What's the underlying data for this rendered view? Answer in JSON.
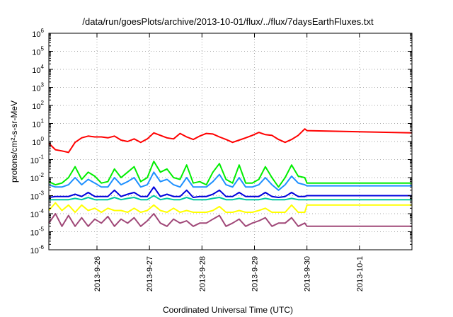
{
  "chart_data": {
    "type": "line",
    "title": "/data/run/goesPlots/archive/2013-10-01/flux/../flux/7daysEarthFluxes.txt",
    "xlabel": "Coordinated Universal Time (UTC)",
    "ylabel": "protons/cm²-s-sr-MeV",
    "yscale": "log",
    "ylim": [
      1e-06,
      1000000.0
    ],
    "y_ticks": [
      {
        "base": "10",
        "exp": "-6"
      },
      {
        "base": "10",
        "exp": "-5"
      },
      {
        "base": "10",
        "exp": "-4"
      },
      {
        "base": "10",
        "exp": "-3"
      },
      {
        "base": "10",
        "exp": "-2"
      },
      {
        "base": "10",
        "exp": "-1"
      },
      {
        "base": "10",
        "exp": "0"
      },
      {
        "base": "10",
        "exp": "1"
      },
      {
        "base": "10",
        "exp": "2"
      },
      {
        "base": "10",
        "exp": "3"
      },
      {
        "base": "10",
        "exp": "4"
      },
      {
        "base": "10",
        "exp": "5"
      },
      {
        "base": "10",
        "exp": "6"
      }
    ],
    "xlim": [
      "2013-09-25T02:00",
      "2013-10-02T00:00"
    ],
    "x_ticks": [
      "2013-9-26",
      "2013-9-27",
      "2013-9-28",
      "2013-9-29",
      "2013-9-30",
      "2013-10-1"
    ],
    "grid": true,
    "series": [
      {
        "color": "#ff0000",
        "x": [
          "2013-09-25T02:00",
          "2013-09-25T05:00",
          "2013-09-25T08:00",
          "2013-09-25T11:00",
          "2013-09-25T14:00",
          "2013-09-25T17:00",
          "2013-09-25T20:00",
          "2013-09-25T23:00",
          "2013-09-26T02:00",
          "2013-09-26T05:00",
          "2013-09-26T08:00",
          "2013-09-26T11:00",
          "2013-09-26T14:00",
          "2013-09-26T17:00",
          "2013-09-26T20:00",
          "2013-09-26T23:00",
          "2013-09-27T02:00",
          "2013-09-27T05:00",
          "2013-09-27T08:00",
          "2013-09-27T11:00",
          "2013-09-27T14:00",
          "2013-09-27T17:00",
          "2013-09-27T20:00",
          "2013-09-27T23:00",
          "2013-09-28T02:00",
          "2013-09-28T05:00",
          "2013-09-28T08:00",
          "2013-09-28T11:00",
          "2013-09-28T14:00",
          "2013-09-28T17:00",
          "2013-09-28T20:00",
          "2013-09-28T23:00",
          "2013-09-29T02:00",
          "2013-09-29T05:00",
          "2013-09-29T08:00",
          "2013-09-29T11:00",
          "2013-09-29T14:00",
          "2013-09-29T17:00",
          "2013-09-29T20:00",
          "2013-09-29T23:00",
          "2013-09-30T00:00",
          "2013-10-02T00:00"
        ],
        "y": [
          0.8,
          0.35,
          0.3,
          0.25,
          0.9,
          1.6,
          2.0,
          1.8,
          1.8,
          1.6,
          2.0,
          1.2,
          1.0,
          1.4,
          0.9,
          1.4,
          3.0,
          2.2,
          1.6,
          1.4,
          2.8,
          1.8,
          1.3,
          2.0,
          2.8,
          2.6,
          1.8,
          1.3,
          0.9,
          1.2,
          1.6,
          2.2,
          3.2,
          2.4,
          2.2,
          1.3,
          0.9,
          1.3,
          2.2,
          5.0,
          4.0,
          3.0
        ]
      },
      {
        "color": "#00ee00",
        "x": [
          "2013-09-25T02:00",
          "2013-09-25T05:00",
          "2013-09-25T08:00",
          "2013-09-25T11:00",
          "2013-09-25T14:00",
          "2013-09-25T17:00",
          "2013-09-25T20:00",
          "2013-09-25T23:00",
          "2013-09-26T02:00",
          "2013-09-26T05:00",
          "2013-09-26T08:00",
          "2013-09-26T11:00",
          "2013-09-26T14:00",
          "2013-09-26T17:00",
          "2013-09-26T20:00",
          "2013-09-26T23:00",
          "2013-09-27T02:00",
          "2013-09-27T05:00",
          "2013-09-27T08:00",
          "2013-09-27T11:00",
          "2013-09-27T14:00",
          "2013-09-27T17:00",
          "2013-09-27T20:00",
          "2013-09-27T23:00",
          "2013-09-28T02:00",
          "2013-09-28T05:00",
          "2013-09-28T08:00",
          "2013-09-28T11:00",
          "2013-09-28T14:00",
          "2013-09-28T17:00",
          "2013-09-28T20:00",
          "2013-09-28T23:00",
          "2013-09-29T02:00",
          "2013-09-29T05:00",
          "2013-09-29T08:00",
          "2013-09-29T11:00",
          "2013-09-29T14:00",
          "2013-09-29T17:00",
          "2013-09-29T20:00",
          "2013-09-29T23:00",
          "2013-09-30T00:00",
          "2013-10-02T00:00"
        ],
        "y": [
          0.006,
          0.004,
          0.005,
          0.01,
          0.04,
          0.008,
          0.02,
          0.012,
          0.005,
          0.006,
          0.03,
          0.01,
          0.02,
          0.04,
          0.006,
          0.01,
          0.08,
          0.02,
          0.03,
          0.01,
          0.008,
          0.05,
          0.005,
          0.006,
          0.004,
          0.02,
          0.06,
          0.008,
          0.005,
          0.05,
          0.005,
          0.005,
          0.008,
          0.04,
          0.01,
          0.003,
          0.01,
          0.05,
          0.012,
          0.01,
          0.005,
          0.005
        ]
      },
      {
        "color": "#1e90ff",
        "x": [
          "2013-09-25T02:00",
          "2013-09-25T05:00",
          "2013-09-25T08:00",
          "2013-09-25T11:00",
          "2013-09-25T14:00",
          "2013-09-25T17:00",
          "2013-09-25T20:00",
          "2013-09-25T23:00",
          "2013-09-26T02:00",
          "2013-09-26T05:00",
          "2013-09-26T08:00",
          "2013-09-26T11:00",
          "2013-09-26T14:00",
          "2013-09-26T17:00",
          "2013-09-26T20:00",
          "2013-09-26T23:00",
          "2013-09-27T02:00",
          "2013-09-27T05:00",
          "2013-09-27T08:00",
          "2013-09-27T11:00",
          "2013-09-27T14:00",
          "2013-09-27T17:00",
          "2013-09-27T20:00",
          "2013-09-27T23:00",
          "2013-09-28T02:00",
          "2013-09-28T05:00",
          "2013-09-28T08:00",
          "2013-09-28T11:00",
          "2013-09-28T14:00",
          "2013-09-28T17:00",
          "2013-09-28T20:00",
          "2013-09-28T23:00",
          "2013-09-29T02:00",
          "2013-09-29T05:00",
          "2013-09-29T08:00",
          "2013-09-29T11:00",
          "2013-09-29T14:00",
          "2013-09-29T17:00",
          "2013-09-29T20:00",
          "2013-09-29T23:00",
          "2013-09-30T00:00",
          "2013-10-02T00:00"
        ],
        "y": [
          0.004,
          0.003,
          0.003,
          0.004,
          0.01,
          0.004,
          0.008,
          0.005,
          0.003,
          0.003,
          0.01,
          0.004,
          0.006,
          0.01,
          0.003,
          0.004,
          0.02,
          0.006,
          0.008,
          0.004,
          0.003,
          0.01,
          0.003,
          0.003,
          0.003,
          0.006,
          0.015,
          0.004,
          0.003,
          0.01,
          0.003,
          0.003,
          0.004,
          0.01,
          0.004,
          0.002,
          0.004,
          0.012,
          0.005,
          0.004,
          0.0035,
          0.0035
        ]
      },
      {
        "color": "#0000dd",
        "x": [
          "2013-09-25T02:00",
          "2013-09-25T05:00",
          "2013-09-25T08:00",
          "2013-09-25T11:00",
          "2013-09-25T14:00",
          "2013-09-25T17:00",
          "2013-09-25T20:00",
          "2013-09-25T23:00",
          "2013-09-26T02:00",
          "2013-09-26T05:00",
          "2013-09-26T08:00",
          "2013-09-26T11:00",
          "2013-09-26T14:00",
          "2013-09-26T17:00",
          "2013-09-26T20:00",
          "2013-09-26T23:00",
          "2013-09-27T02:00",
          "2013-09-27T05:00",
          "2013-09-27T08:00",
          "2013-09-27T11:00",
          "2013-09-27T14:00",
          "2013-09-27T17:00",
          "2013-09-27T20:00",
          "2013-09-27T23:00",
          "2013-09-28T02:00",
          "2013-09-28T05:00",
          "2013-09-28T08:00",
          "2013-09-28T11:00",
          "2013-09-28T14:00",
          "2013-09-28T17:00",
          "2013-09-28T20:00",
          "2013-09-28T23:00",
          "2013-09-29T02:00",
          "2013-09-29T05:00",
          "2013-09-29T08:00",
          "2013-09-29T11:00",
          "2013-09-29T14:00",
          "2013-09-29T17:00",
          "2013-09-29T20:00",
          "2013-09-29T23:00",
          "2013-09-30T00:00",
          "2013-10-02T00:00"
        ],
        "y": [
          0.0008,
          0.0009,
          0.0009,
          0.0009,
          0.0012,
          0.0009,
          0.0015,
          0.0009,
          0.0009,
          0.0009,
          0.002,
          0.0009,
          0.0012,
          0.0015,
          0.0009,
          0.0009,
          0.003,
          0.0009,
          0.0012,
          0.0009,
          0.0009,
          0.002,
          0.0008,
          0.0009,
          0.0009,
          0.0012,
          0.002,
          0.0009,
          0.0009,
          0.0015,
          0.0009,
          0.0009,
          0.0009,
          0.0015,
          0.0009,
          0.0008,
          0.0009,
          0.0015,
          0.0009,
          0.0009,
          0.001,
          0.001
        ]
      },
      {
        "color": "#00c8a0",
        "x": [
          "2013-09-25T02:00",
          "2013-09-25T05:00",
          "2013-09-25T08:00",
          "2013-09-25T11:00",
          "2013-09-25T14:00",
          "2013-09-25T17:00",
          "2013-09-25T20:00",
          "2013-09-25T23:00",
          "2013-09-26T02:00",
          "2013-09-26T05:00",
          "2013-09-26T08:00",
          "2013-09-26T11:00",
          "2013-09-26T14:00",
          "2013-09-26T17:00",
          "2013-09-26T20:00",
          "2013-09-26T23:00",
          "2013-09-27T02:00",
          "2013-09-27T05:00",
          "2013-09-27T08:00",
          "2013-09-27T11:00",
          "2013-09-27T14:00",
          "2013-09-27T17:00",
          "2013-09-27T20:00",
          "2013-09-27T23:00",
          "2013-09-28T02:00",
          "2013-09-28T05:00",
          "2013-09-28T08:00",
          "2013-09-28T11:00",
          "2013-09-28T14:00",
          "2013-09-28T17:00",
          "2013-09-28T20:00",
          "2013-09-28T23:00",
          "2013-09-29T02:00",
          "2013-09-29T05:00",
          "2013-09-29T08:00",
          "2013-09-29T11:00",
          "2013-09-29T14:00",
          "2013-09-29T17:00",
          "2013-09-29T20:00",
          "2013-09-29T23:00",
          "2013-09-30T00:00",
          "2013-10-02T00:00"
        ],
        "y": [
          0.0006,
          0.0006,
          0.0006,
          0.0006,
          0.0007,
          0.0006,
          0.0008,
          0.0006,
          0.0006,
          0.0006,
          0.0008,
          0.0006,
          0.0007,
          0.0008,
          0.0006,
          0.0006,
          0.001,
          0.0006,
          0.0007,
          0.0006,
          0.0006,
          0.0008,
          0.0006,
          0.0006,
          0.0006,
          0.0007,
          0.0008,
          0.0006,
          0.0006,
          0.0007,
          0.0006,
          0.0006,
          0.0006,
          0.0007,
          0.0006,
          0.0006,
          0.0006,
          0.0007,
          0.0006,
          0.0006,
          0.0006,
          0.0006
        ]
      },
      {
        "color": "#ffff00",
        "x": [
          "2013-09-25T02:00",
          "2013-09-25T05:00",
          "2013-09-25T08:00",
          "2013-09-25T11:00",
          "2013-09-25T14:00",
          "2013-09-25T17:00",
          "2013-09-25T20:00",
          "2013-09-25T23:00",
          "2013-09-26T02:00",
          "2013-09-26T05:00",
          "2013-09-26T08:00",
          "2013-09-26T11:00",
          "2013-09-26T14:00",
          "2013-09-26T17:00",
          "2013-09-26T20:00",
          "2013-09-26T23:00",
          "2013-09-27T02:00",
          "2013-09-27T05:00",
          "2013-09-27T08:00",
          "2013-09-27T11:00",
          "2013-09-27T14:00",
          "2013-09-27T17:00",
          "2013-09-27T20:00",
          "2013-09-27T23:00",
          "2013-09-28T02:00",
          "2013-09-28T05:00",
          "2013-09-28T08:00",
          "2013-09-28T11:00",
          "2013-09-28T14:00",
          "2013-09-28T17:00",
          "2013-09-28T20:00",
          "2013-09-28T23:00",
          "2013-09-29T02:00",
          "2013-09-29T05:00",
          "2013-09-29T08:00",
          "2013-09-29T11:00",
          "2013-09-29T14:00",
          "2013-09-29T17:00",
          "2013-09-29T20:00",
          "2013-09-29T23:00",
          "2013-09-30T00:00",
          "2013-10-02T00:00"
        ],
        "y": [
          0.00015,
          0.0004,
          0.00015,
          0.0003,
          0.00012,
          0.0003,
          0.00015,
          0.0002,
          0.00012,
          0.0002,
          0.00015,
          0.00015,
          0.00012,
          0.0002,
          0.00012,
          0.00015,
          0.0003,
          0.00015,
          0.00012,
          0.0002,
          0.00012,
          0.00015,
          0.00012,
          0.00012,
          0.00012,
          0.00015,
          0.00025,
          0.00012,
          0.00012,
          0.00015,
          0.00012,
          0.00012,
          0.00015,
          0.0002,
          0.00012,
          0.00012,
          0.00012,
          0.0003,
          0.00012,
          0.00012,
          0.0003,
          0.0003
        ]
      },
      {
        "color": "#a04878",
        "x": [
          "2013-09-25T02:00",
          "2013-09-25T05:00",
          "2013-09-25T08:00",
          "2013-09-25T11:00",
          "2013-09-25T14:00",
          "2013-09-25T17:00",
          "2013-09-25T20:00",
          "2013-09-25T23:00",
          "2013-09-26T02:00",
          "2013-09-26T05:00",
          "2013-09-26T08:00",
          "2013-09-26T11:00",
          "2013-09-26T14:00",
          "2013-09-26T17:00",
          "2013-09-26T20:00",
          "2013-09-26T23:00",
          "2013-09-27T02:00",
          "2013-09-27T05:00",
          "2013-09-27T08:00",
          "2013-09-27T11:00",
          "2013-09-27T14:00",
          "2013-09-27T17:00",
          "2013-09-27T20:00",
          "2013-09-27T23:00",
          "2013-09-28T02:00",
          "2013-09-28T05:00",
          "2013-09-28T08:00",
          "2013-09-28T11:00",
          "2013-09-28T14:00",
          "2013-09-28T17:00",
          "2013-09-28T20:00",
          "2013-09-28T23:00",
          "2013-09-29T02:00",
          "2013-09-29T05:00",
          "2013-09-29T08:00",
          "2013-09-29T11:00",
          "2013-09-29T14:00",
          "2013-09-29T17:00",
          "2013-09-29T20:00",
          "2013-09-29T23:00",
          "2013-09-30T00:00",
          "2013-10-02T00:00"
        ],
        "y": [
          3e-05,
          0.0001,
          2e-05,
          8e-05,
          2e-05,
          6e-05,
          2e-05,
          5e-05,
          3e-05,
          7e-05,
          2e-05,
          5e-05,
          3e-05,
          6e-05,
          2e-05,
          4e-05,
          0.0001,
          3e-05,
          2e-05,
          5e-05,
          3e-05,
          4e-05,
          2e-05,
          3e-05,
          3e-05,
          5e-05,
          8e-05,
          2e-05,
          3e-05,
          5e-05,
          2e-05,
          3e-05,
          4e-05,
          6e-05,
          2e-05,
          3e-05,
          3e-05,
          6e-05,
          2e-05,
          3e-05,
          2e-05,
          2e-05
        ]
      }
    ]
  }
}
